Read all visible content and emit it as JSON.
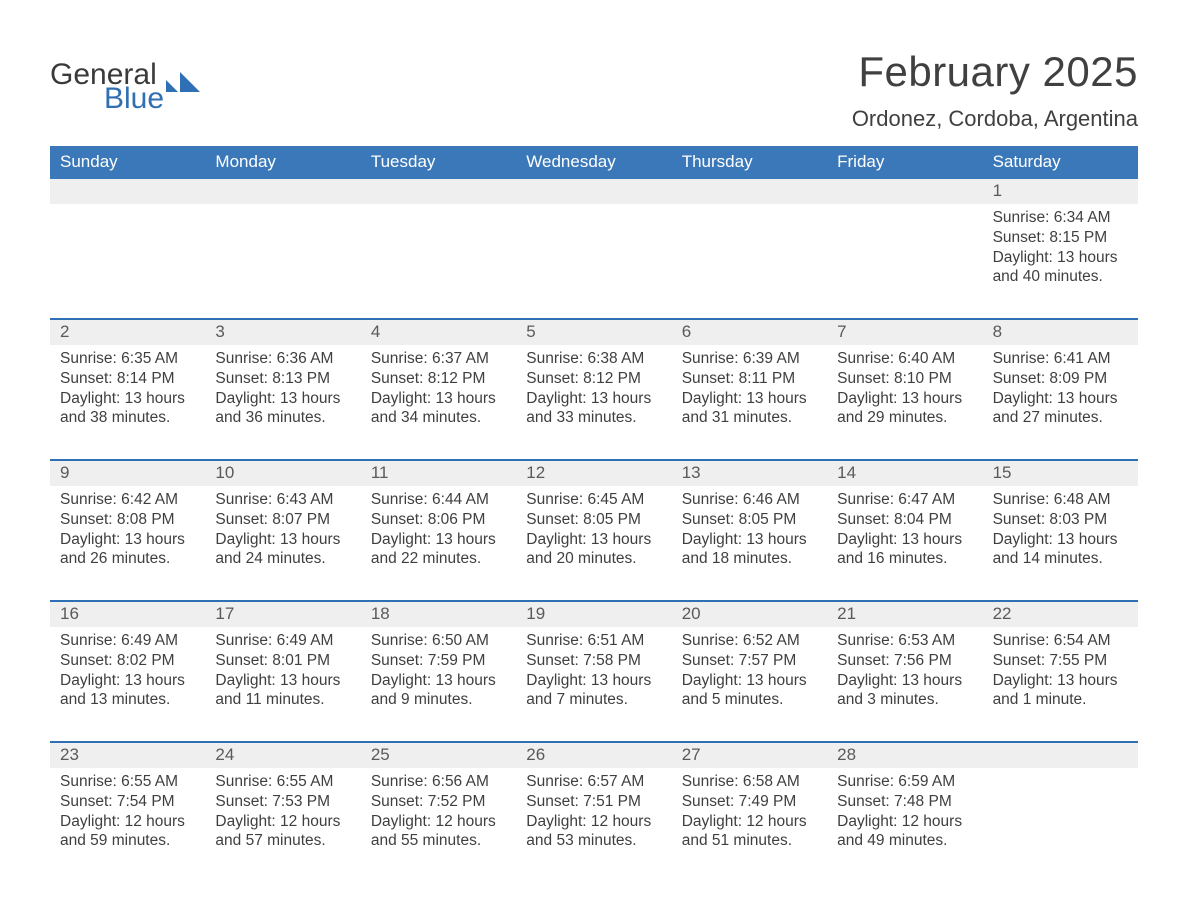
{
  "brand": {
    "line1": "General",
    "line2": "Blue"
  },
  "title": "February 2025",
  "location": "Ordonez, Cordoba, Argentina",
  "weekdays": [
    "Sunday",
    "Monday",
    "Tuesday",
    "Wednesday",
    "Thursday",
    "Friday",
    "Saturday"
  ],
  "colors": {
    "header_blue": "#3b78b9",
    "accent_blue": "#2f6fb3",
    "row_grey": "#efefef",
    "text": "#333333"
  },
  "weeks": [
    [
      null,
      null,
      null,
      null,
      null,
      null,
      {
        "n": "1",
        "sunrise": "Sunrise: 6:34 AM",
        "sunset": "Sunset: 8:15 PM",
        "dayl1": "Daylight: 13 hours",
        "dayl2": "and 40 minutes."
      }
    ],
    [
      {
        "n": "2",
        "sunrise": "Sunrise: 6:35 AM",
        "sunset": "Sunset: 8:14 PM",
        "dayl1": "Daylight: 13 hours",
        "dayl2": "and 38 minutes."
      },
      {
        "n": "3",
        "sunrise": "Sunrise: 6:36 AM",
        "sunset": "Sunset: 8:13 PM",
        "dayl1": "Daylight: 13 hours",
        "dayl2": "and 36 minutes."
      },
      {
        "n": "4",
        "sunrise": "Sunrise: 6:37 AM",
        "sunset": "Sunset: 8:12 PM",
        "dayl1": "Daylight: 13 hours",
        "dayl2": "and 34 minutes."
      },
      {
        "n": "5",
        "sunrise": "Sunrise: 6:38 AM",
        "sunset": "Sunset: 8:12 PM",
        "dayl1": "Daylight: 13 hours",
        "dayl2": "and 33 minutes."
      },
      {
        "n": "6",
        "sunrise": "Sunrise: 6:39 AM",
        "sunset": "Sunset: 8:11 PM",
        "dayl1": "Daylight: 13 hours",
        "dayl2": "and 31 minutes."
      },
      {
        "n": "7",
        "sunrise": "Sunrise: 6:40 AM",
        "sunset": "Sunset: 8:10 PM",
        "dayl1": "Daylight: 13 hours",
        "dayl2": "and 29 minutes."
      },
      {
        "n": "8",
        "sunrise": "Sunrise: 6:41 AM",
        "sunset": "Sunset: 8:09 PM",
        "dayl1": "Daylight: 13 hours",
        "dayl2": "and 27 minutes."
      }
    ],
    [
      {
        "n": "9",
        "sunrise": "Sunrise: 6:42 AM",
        "sunset": "Sunset: 8:08 PM",
        "dayl1": "Daylight: 13 hours",
        "dayl2": "and 26 minutes."
      },
      {
        "n": "10",
        "sunrise": "Sunrise: 6:43 AM",
        "sunset": "Sunset: 8:07 PM",
        "dayl1": "Daylight: 13 hours",
        "dayl2": "and 24 minutes."
      },
      {
        "n": "11",
        "sunrise": "Sunrise: 6:44 AM",
        "sunset": "Sunset: 8:06 PM",
        "dayl1": "Daylight: 13 hours",
        "dayl2": "and 22 minutes."
      },
      {
        "n": "12",
        "sunrise": "Sunrise: 6:45 AM",
        "sunset": "Sunset: 8:05 PM",
        "dayl1": "Daylight: 13 hours",
        "dayl2": "and 20 minutes."
      },
      {
        "n": "13",
        "sunrise": "Sunrise: 6:46 AM",
        "sunset": "Sunset: 8:05 PM",
        "dayl1": "Daylight: 13 hours",
        "dayl2": "and 18 minutes."
      },
      {
        "n": "14",
        "sunrise": "Sunrise: 6:47 AM",
        "sunset": "Sunset: 8:04 PM",
        "dayl1": "Daylight: 13 hours",
        "dayl2": "and 16 minutes."
      },
      {
        "n": "15",
        "sunrise": "Sunrise: 6:48 AM",
        "sunset": "Sunset: 8:03 PM",
        "dayl1": "Daylight: 13 hours",
        "dayl2": "and 14 minutes."
      }
    ],
    [
      {
        "n": "16",
        "sunrise": "Sunrise: 6:49 AM",
        "sunset": "Sunset: 8:02 PM",
        "dayl1": "Daylight: 13 hours",
        "dayl2": "and 13 minutes."
      },
      {
        "n": "17",
        "sunrise": "Sunrise: 6:49 AM",
        "sunset": "Sunset: 8:01 PM",
        "dayl1": "Daylight: 13 hours",
        "dayl2": "and 11 minutes."
      },
      {
        "n": "18",
        "sunrise": "Sunrise: 6:50 AM",
        "sunset": "Sunset: 7:59 PM",
        "dayl1": "Daylight: 13 hours",
        "dayl2": "and 9 minutes."
      },
      {
        "n": "19",
        "sunrise": "Sunrise: 6:51 AM",
        "sunset": "Sunset: 7:58 PM",
        "dayl1": "Daylight: 13 hours",
        "dayl2": "and 7 minutes."
      },
      {
        "n": "20",
        "sunrise": "Sunrise: 6:52 AM",
        "sunset": "Sunset: 7:57 PM",
        "dayl1": "Daylight: 13 hours",
        "dayl2": "and 5 minutes."
      },
      {
        "n": "21",
        "sunrise": "Sunrise: 6:53 AM",
        "sunset": "Sunset: 7:56 PM",
        "dayl1": "Daylight: 13 hours",
        "dayl2": "and 3 minutes."
      },
      {
        "n": "22",
        "sunrise": "Sunrise: 6:54 AM",
        "sunset": "Sunset: 7:55 PM",
        "dayl1": "Daylight: 13 hours",
        "dayl2": "and 1 minute."
      }
    ],
    [
      {
        "n": "23",
        "sunrise": "Sunrise: 6:55 AM",
        "sunset": "Sunset: 7:54 PM",
        "dayl1": "Daylight: 12 hours",
        "dayl2": "and 59 minutes."
      },
      {
        "n": "24",
        "sunrise": "Sunrise: 6:55 AM",
        "sunset": "Sunset: 7:53 PM",
        "dayl1": "Daylight: 12 hours",
        "dayl2": "and 57 minutes."
      },
      {
        "n": "25",
        "sunrise": "Sunrise: 6:56 AM",
        "sunset": "Sunset: 7:52 PM",
        "dayl1": "Daylight: 12 hours",
        "dayl2": "and 55 minutes."
      },
      {
        "n": "26",
        "sunrise": "Sunrise: 6:57 AM",
        "sunset": "Sunset: 7:51 PM",
        "dayl1": "Daylight: 12 hours",
        "dayl2": "and 53 minutes."
      },
      {
        "n": "27",
        "sunrise": "Sunrise: 6:58 AM",
        "sunset": "Sunset: 7:49 PM",
        "dayl1": "Daylight: 12 hours",
        "dayl2": "and 51 minutes."
      },
      {
        "n": "28",
        "sunrise": "Sunrise: 6:59 AM",
        "sunset": "Sunset: 7:48 PM",
        "dayl1": "Daylight: 12 hours",
        "dayl2": "and 49 minutes."
      },
      null
    ]
  ]
}
